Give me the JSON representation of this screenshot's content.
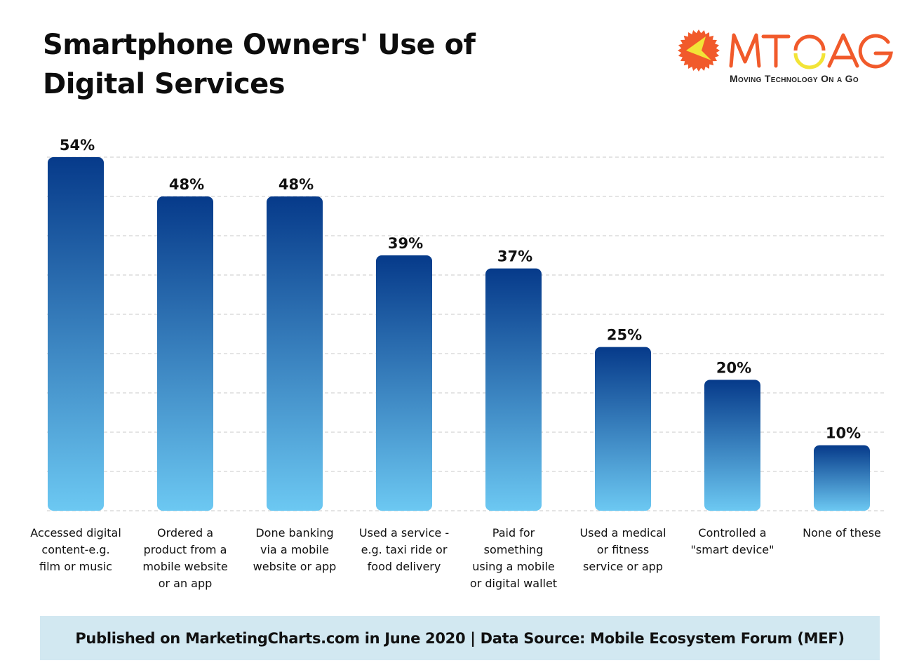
{
  "header": {
    "title_line1": "Smartphone Owners' Use of",
    "title_line2": "Digital Services"
  },
  "logo": {
    "wordmark": "MTOAG",
    "tagline": "Moving Technology On a Go",
    "colors": {
      "primary": "#f15a2b",
      "accent": "#f2e437"
    }
  },
  "chart_data": {
    "type": "bar",
    "title": "Smartphone Owners' Use of Digital Services",
    "xlabel": "",
    "ylabel": "",
    "ylim": [
      0,
      54
    ],
    "grid": true,
    "value_suffix": "%",
    "categories": [
      "Accessed digital content-e.g. film or music",
      "Ordered a product from a mobile website or an app",
      "Done banking via a mobile website or app",
      "Used a service - e.g. taxi ride or food delivery",
      "Paid for something using a mobile or digital wallet",
      "Used a medical or fitness service or app",
      "Controlled a \"smart device\"",
      "None of these"
    ],
    "category_lines": [
      [
        "Accessed digital",
        "content-e.g.",
        "film or music"
      ],
      [
        "Ordered a",
        "product from a",
        "mobile website",
        "or an app"
      ],
      [
        "Done banking",
        "via a mobile",
        "website or app"
      ],
      [
        "Used a service -",
        "e.g. taxi ride or",
        "food delivery"
      ],
      [
        "Paid for",
        "something",
        "using a mobile",
        "or digital wallet"
      ],
      [
        "Used a medical",
        "or fitness",
        "service or app"
      ],
      [
        "Controlled a",
        "\"smart device\""
      ],
      [
        "None of these"
      ]
    ],
    "values": [
      54,
      48,
      48,
      39,
      37,
      25,
      20,
      10
    ],
    "labels": [
      "54%",
      "48%",
      "48%",
      "39%",
      "37%",
      "25%",
      "20%",
      "10%"
    ],
    "colors": {
      "bar_top": "#063a8a",
      "bar_bottom": "#6cc8f2",
      "grid": "#c8c8c8"
    }
  },
  "footer": {
    "text": "Published on MarketingCharts.com in June 2020 | Data Source: Mobile Ecosystem Forum (MEF)"
  }
}
